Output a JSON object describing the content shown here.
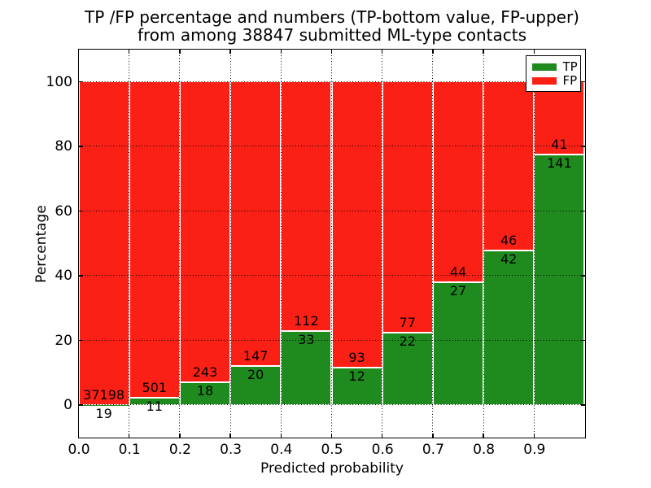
{
  "title": {
    "line1": "TP /FP percentage and numbers (TP-bottom value, FP-upper)",
    "line2": "from among 38847 submitted ML-type contacts"
  },
  "legend": {
    "items": [
      {
        "label": "TP",
        "color": "#1f8b1f"
      },
      {
        "label": "FP",
        "color": "#fb2016"
      }
    ]
  },
  "chart_data": {
    "type": "bar",
    "stacked": true,
    "normalized": "percent",
    "title": "TP /FP percentage and numbers (TP-bottom value, FP-upper) from among 38847 submitted ML-type contacts",
    "xlabel": "Predicted probability",
    "ylabel": "Percentage",
    "xlim": [
      0.0,
      1.0
    ],
    "ylim": [
      -10,
      110
    ],
    "xtick_labels": [
      "0.0",
      "0.1",
      "0.2",
      "0.3",
      "0.4",
      "0.5",
      "0.6",
      "0.7",
      "0.8",
      "0.9"
    ],
    "xtick_values": [
      0.0,
      0.1,
      0.2,
      0.3,
      0.4,
      0.5,
      0.6,
      0.7,
      0.8,
      0.9
    ],
    "ytick_labels": [
      "0",
      "20",
      "40",
      "60",
      "80",
      "100"
    ],
    "ytick_values": [
      0,
      20,
      40,
      60,
      80,
      100
    ],
    "grid": true,
    "grid_style": "dotted",
    "legend_position": "upper right",
    "total_contacts": 38847,
    "colors": {
      "tp": "#1f8b1f",
      "fp": "#fb2016",
      "bar_edge": "#ffffff"
    },
    "series": [
      {
        "name": "TP",
        "counts": [
          19,
          11,
          18,
          20,
          33,
          12,
          22,
          27,
          42,
          141
        ]
      },
      {
        "name": "FP",
        "counts": [
          37198,
          501,
          243,
          147,
          112,
          93,
          77,
          44,
          46,
          41
        ]
      }
    ],
    "bins": [
      {
        "range": [
          0.0,
          0.1
        ],
        "tp": 19,
        "fp": 37198,
        "tp_percent": 0.05
      },
      {
        "range": [
          0.1,
          0.2
        ],
        "tp": 11,
        "fp": 501,
        "tp_percent": 2.15
      },
      {
        "range": [
          0.2,
          0.3
        ],
        "tp": 18,
        "fp": 243,
        "tp_percent": 6.9
      },
      {
        "range": [
          0.3,
          0.4
        ],
        "tp": 20,
        "fp": 147,
        "tp_percent": 11.98
      },
      {
        "range": [
          0.4,
          0.5
        ],
        "tp": 33,
        "fp": 112,
        "tp_percent": 22.76
      },
      {
        "range": [
          0.5,
          0.6
        ],
        "tp": 12,
        "fp": 93,
        "tp_percent": 11.43
      },
      {
        "range": [
          0.6,
          0.7
        ],
        "tp": 22,
        "fp": 77,
        "tp_percent": 22.22
      },
      {
        "range": [
          0.7,
          0.8
        ],
        "tp": 27,
        "fp": 44,
        "tp_percent": 38.03
      },
      {
        "range": [
          0.8,
          0.9
        ],
        "tp": 42,
        "fp": 46,
        "tp_percent": 47.73
      },
      {
        "range": [
          0.9,
          1.0
        ],
        "tp": 141,
        "fp": 41,
        "tp_percent": 77.47
      }
    ]
  }
}
